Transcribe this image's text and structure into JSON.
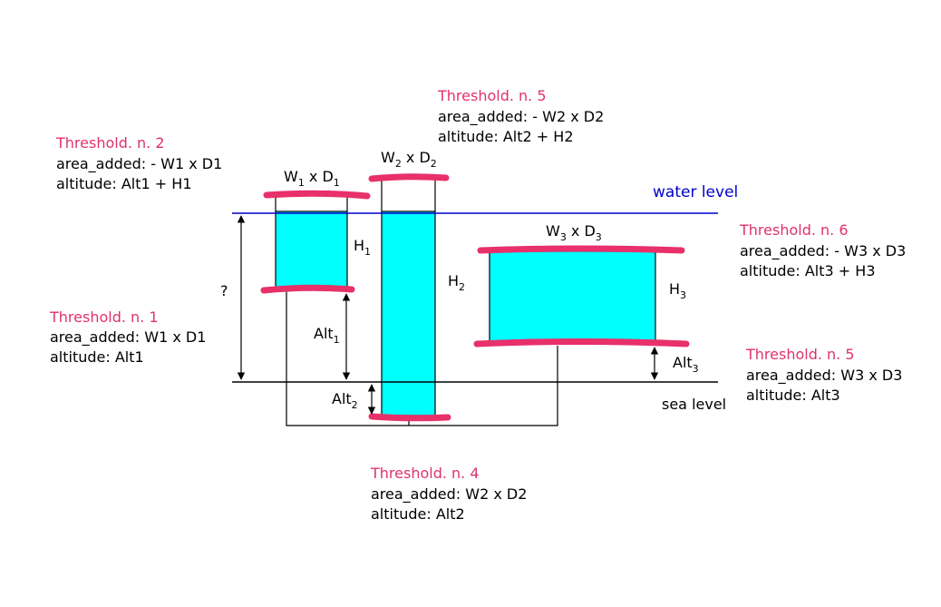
{
  "colors": {
    "threshold_title": "#e0326e",
    "tank_fill": "#00ffff",
    "water_level_line": "#0000cc",
    "rim_marker": "#e8306a",
    "outline": "#000000"
  },
  "water_level_label": "water level",
  "sea_level_label": "sea level",
  "unknown_label": "?",
  "tank1": {
    "top_label": {
      "a": "W",
      "a_sub": "1",
      "b": " x D",
      "b_sub": "1"
    },
    "height_label": {
      "a": "H",
      "a_sub": "1"
    },
    "alt_label": {
      "a": "Alt",
      "a_sub": "1"
    }
  },
  "tank2": {
    "top_label": {
      "a": "W",
      "a_sub": "2",
      "b": " x D",
      "b_sub": "2"
    },
    "height_label": {
      "a": "H",
      "a_sub": "2"
    },
    "alt_label": {
      "a": "Alt",
      "a_sub": "2"
    }
  },
  "tank3": {
    "top_label": {
      "a": "W",
      "a_sub": "3",
      "b": " x D",
      "b_sub": "3"
    },
    "height_label": {
      "a": "H",
      "a_sub": "3"
    },
    "alt_label": {
      "a": "Alt",
      "a_sub": "3"
    }
  },
  "thresholds": {
    "t1": {
      "title": "Threshold. n. 1",
      "area": "area_added: W1 x D1",
      "altitude": "altitude: Alt1"
    },
    "t2": {
      "title": "Threshold. n. 2",
      "area": "area_added: - W1 x D1",
      "altitude": "altitude: Alt1 + H1"
    },
    "t4": {
      "title": "Threshold. n. 4",
      "area": "area_added: W2 x D2",
      "altitude": "altitude: Alt2"
    },
    "t5a": {
      "title": "Threshold. n. 5",
      "area": "area_added: - W2 x D2",
      "altitude": "altitude: Alt2 + H2"
    },
    "t5b": {
      "title": "Threshold. n. 5",
      "area": "area_added: W3 x D3",
      "altitude": "altitude: Alt3"
    },
    "t6": {
      "title": "Threshold. n. 6",
      "area": "area_added: - W3 x D3",
      "altitude": "altitude: Alt3 + H3"
    }
  }
}
